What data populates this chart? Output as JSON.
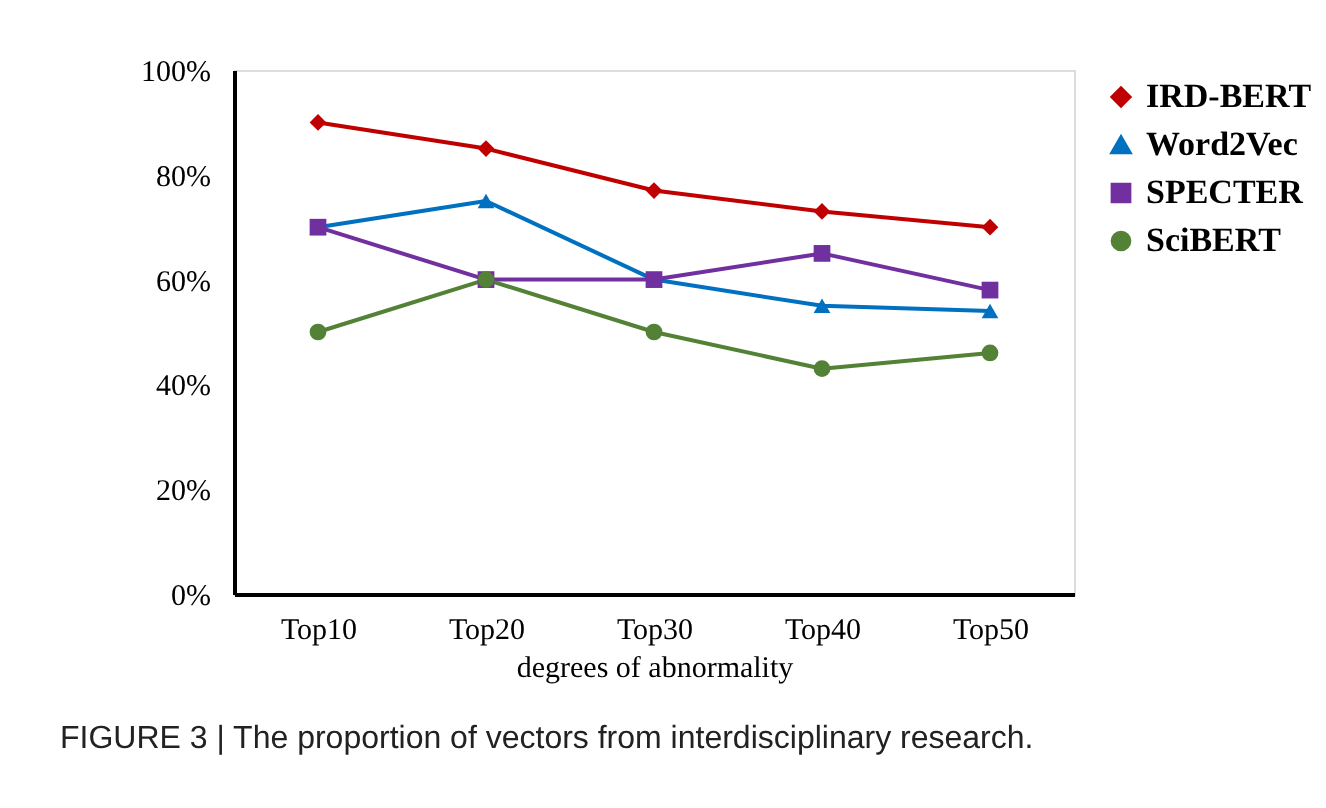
{
  "chart_data": {
    "type": "line",
    "xlabel": "degrees of abnormality",
    "categories": [
      "Top10",
      "Top20",
      "Top30",
      "Top40",
      "Top50"
    ],
    "series": [
      {
        "name": "IRD-BERT",
        "color": "#c00000",
        "marker": "diamond",
        "values": [
          90,
          85,
          77,
          73,
          70
        ]
      },
      {
        "name": "Word2Vec",
        "color": "#0070c0",
        "marker": "triangle",
        "values": [
          70,
          75,
          60,
          55,
          54
        ]
      },
      {
        "name": "SPECTER",
        "color": "#7030a0",
        "marker": "square",
        "values": [
          70,
          60,
          60,
          65,
          58
        ]
      },
      {
        "name": "SciBERT",
        "color": "#538135",
        "marker": "circle",
        "values": [
          50,
          60,
          50,
          43,
          46
        ]
      }
    ],
    "ylim": [
      0,
      100
    ],
    "yticks": [
      {
        "value": 0,
        "label": "0%"
      },
      {
        "value": 20,
        "label": "20%"
      },
      {
        "value": 40,
        "label": "40%"
      },
      {
        "value": 60,
        "label": "60%"
      },
      {
        "value": 80,
        "label": "80%"
      },
      {
        "value": 100,
        "label": "100%"
      }
    ],
    "grid": false,
    "legend": "top right",
    "line_style": "solid",
    "annotations": [
      "FIGURE 3 | The proportion of vectors from interdisciplinary research."
    ]
  }
}
